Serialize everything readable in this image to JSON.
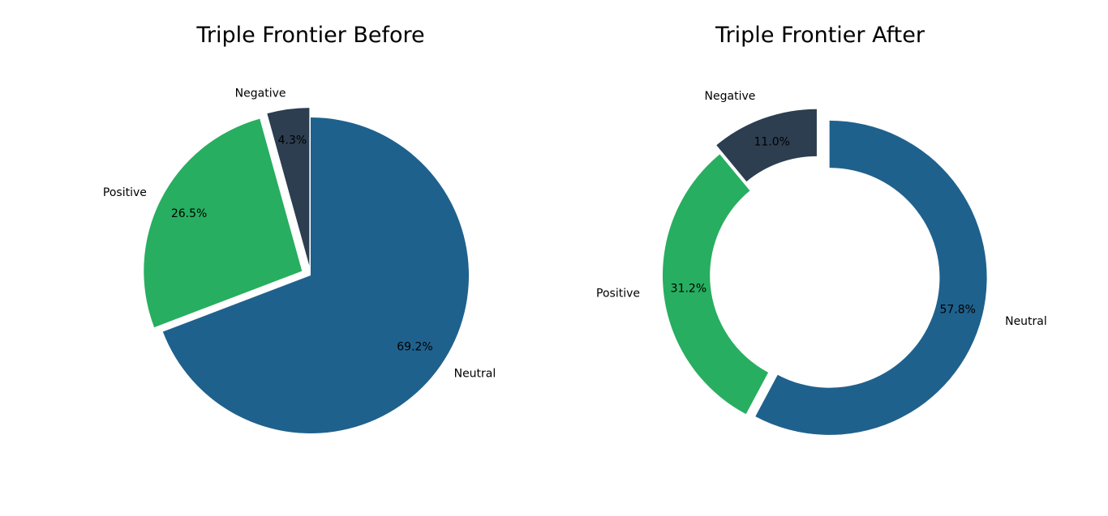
{
  "colors": {
    "Neutral": "#1f618d",
    "Positive": "#27ae60",
    "Negative": "#2c3e50"
  },
  "chart_data": [
    {
      "type": "pie",
      "style": "pie",
      "title": "Triple Frontier Before",
      "slices": [
        {
          "label": "Neutral",
          "value": 69.2,
          "percent_label": "69.2%",
          "exploded": false
        },
        {
          "label": "Positive",
          "value": 26.5,
          "percent_label": "26.5%",
          "exploded": true
        },
        {
          "label": "Negative",
          "value": 4.3,
          "percent_label": "4.3%",
          "exploded": true
        }
      ]
    },
    {
      "type": "pie",
      "style": "donut",
      "title": "Triple Frontier After",
      "slices": [
        {
          "label": "Neutral",
          "value": 57.8,
          "percent_label": "57.8%",
          "exploded": true
        },
        {
          "label": "Positive",
          "value": 31.2,
          "percent_label": "31.2%",
          "exploded": false
        },
        {
          "label": "Negative",
          "value": 11.0,
          "percent_label": "11.0%",
          "exploded": true
        }
      ]
    }
  ]
}
